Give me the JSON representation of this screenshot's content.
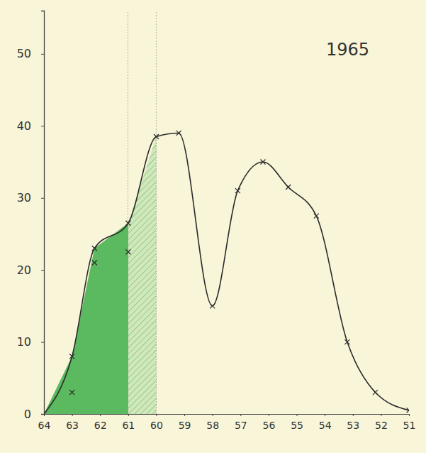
{
  "chart_data": {
    "type": "line",
    "title": "1965",
    "series": [
      {
        "x": [
          64,
          63,
          62.2,
          61,
          60,
          59.2,
          58,
          57.1,
          56.2,
          55.3,
          54.3,
          53.2,
          52.2,
          51
        ],
        "values": [
          0,
          8,
          23,
          26.5,
          38.5,
          39,
          15,
          31,
          35,
          31.5,
          27.5,
          10,
          3,
          0.5
        ],
        "color": "#2b2b2b",
        "marker": "x",
        "line_style": "solid"
      },
      {
        "type": "scatter",
        "x": [
          63,
          62.2,
          61
        ],
        "values": [
          3,
          21,
          22.5
        ],
        "color": "#2b2b2b",
        "marker": "x"
      }
    ],
    "shaded_ranges": [
      {
        "x": [
          64,
          61
        ],
        "color": "#3fae4a",
        "line_style": "solid"
      },
      {
        "x": [
          61,
          60
        ],
        "color": "#8fcf8a",
        "line_style": "hatched"
      }
    ],
    "xlim": [
      64,
      51
    ],
    "xticks": [
      64,
      63,
      62,
      61,
      60,
      59,
      58,
      57,
      56,
      55,
      54,
      53,
      52,
      51
    ],
    "ylim": [
      0,
      56
    ],
    "yticks": [
      0,
      10,
      20,
      30,
      40,
      50
    ],
    "grid": false
  }
}
